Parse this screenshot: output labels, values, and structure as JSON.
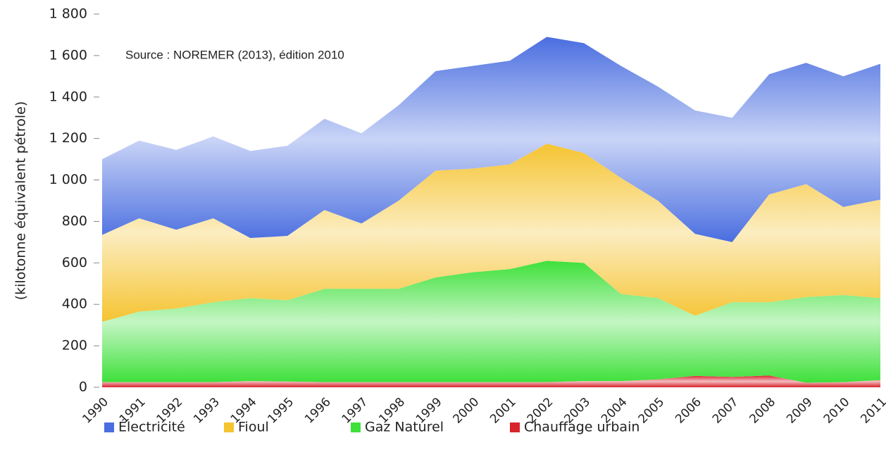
{
  "chart_data": {
    "type": "stacked_area",
    "y_label": "(kilotonne équivalent pétrole)",
    "annotation": "Source : NOREMER (2013), édition 2010",
    "categories": [
      "1990",
      "1991",
      "1992",
      "1993",
      "1994",
      "1995",
      "1996",
      "1997",
      "1998",
      "1999",
      "2000",
      "2001",
      "2002",
      "2003",
      "2004",
      "2005",
      "2006",
      "2007",
      "2008",
      "2009",
      "2010",
      "2011"
    ],
    "series": [
      {
        "name": "Électricité",
        "color": "#4a6ee0",
        "values": [
          365,
          375,
          385,
          395,
          420,
          435,
          440,
          435,
          460,
          480,
          495,
          500,
          515,
          530,
          540,
          550,
          595,
          600,
          580,
          585,
          630,
          655
        ]
      },
      {
        "name": "Fioul",
        "color": "#f5c431",
        "values": [
          419,
          450,
          380,
          405,
          290,
          310,
          380,
          315,
          425,
          515,
          500,
          505,
          565,
          530,
          560,
          470,
          395,
          290,
          520,
          545,
          425,
          475
        ]
      },
      {
        "name": "Gaz Naturel",
        "color": "#3ee03a",
        "values": [
          291,
          340,
          355,
          385,
          400,
          392,
          450,
          450,
          450,
          505,
          530,
          545,
          585,
          570,
          420,
          392,
          290,
          360,
          353,
          413,
          420,
          395
        ]
      },
      {
        "name": "Chauffage urbain",
        "color": "#d8242c",
        "values": [
          25,
          25,
          25,
          25,
          30,
          28,
          25,
          25,
          25,
          25,
          25,
          25,
          25,
          30,
          30,
          38,
          55,
          50,
          57,
          22,
          25,
          35
        ]
      }
    ],
    "ylim": [
      0,
      1800
    ],
    "yticks": [
      0,
      200,
      400,
      600,
      800,
      {
        "value": 1000,
        "label": "1 000"
      },
      {
        "value": 1200,
        "label": "1 200"
      },
      {
        "value": 1400,
        "label": "1 400"
      },
      {
        "value": 1600,
        "label": "1 600"
      },
      {
        "value": 1800,
        "label": "1 800"
      }
    ],
    "stack_bottom_first": "last",
    "legend": "bottom"
  }
}
